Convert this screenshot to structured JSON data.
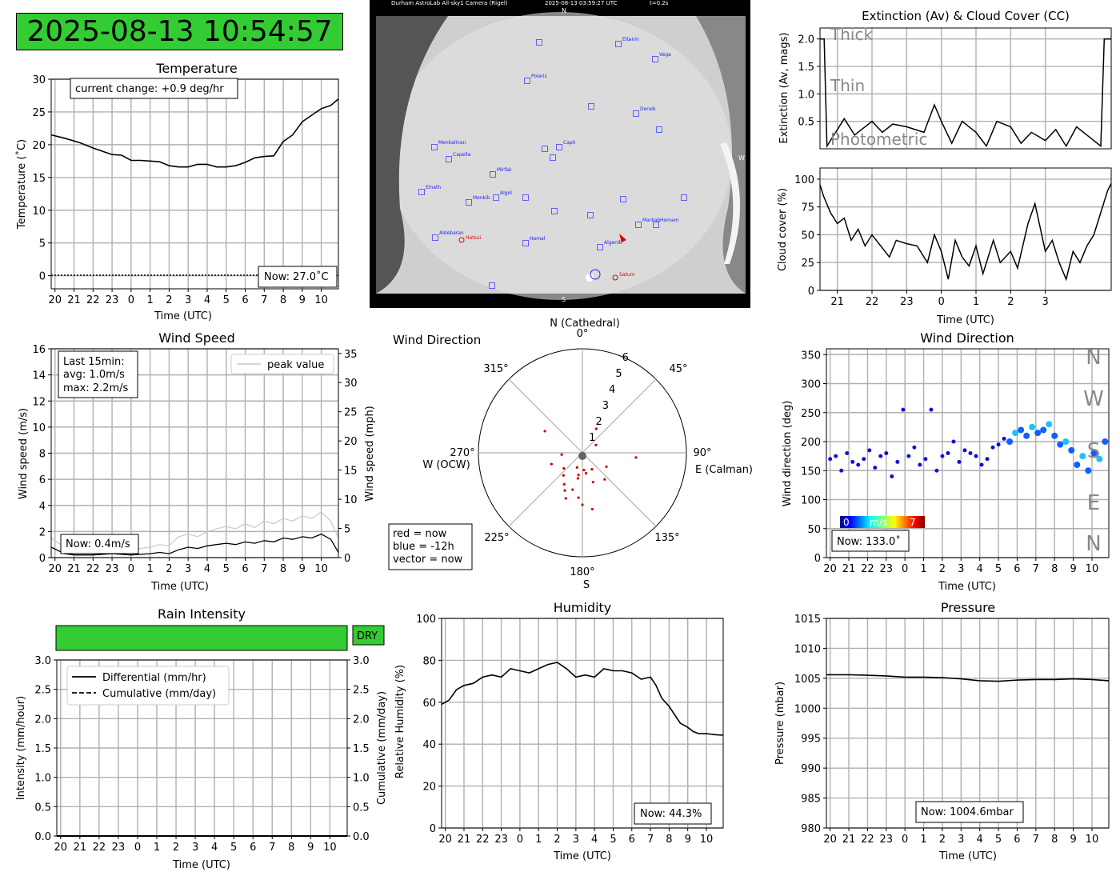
{
  "clock": "2025-08-13 10:54:57",
  "colors": {
    "green": "#33cc33",
    "grid": "#b0b0b0",
    "peak": "#c8c8c8",
    "red": "#d00000",
    "blue": "#4040ff"
  },
  "time_ticks_20_10": [
    "20",
    "21",
    "22",
    "23",
    "0",
    "1",
    "2",
    "3",
    "4",
    "5",
    "6",
    "7",
    "8",
    "9",
    "10"
  ],
  "time_ticks_21_3": [
    "21",
    "22",
    "23",
    "0",
    "1",
    "2",
    "3"
  ],
  "allsky": {
    "header": "Durham AstroLab All-sky1 Camera (Rigel)",
    "timestamp": "2025-08-13 03:59:27 UTC",
    "exposure": "t=0.2s",
    "n": "N",
    "s": "S",
    "w": "W",
    "stars": [
      "Eltanin",
      "Vega",
      "Polaris",
      "Deneb",
      "Menkalinan",
      "Capella",
      "Caph",
      "Mirfak",
      "Elnath",
      "Menkib",
      "Algol",
      "Markab",
      "Homam",
      "Aldebaran",
      "Hamal",
      "Algenib"
    ],
    "red_labels": [
      "Hatsui",
      "Saturn"
    ]
  },
  "temperature": {
    "title": "Temperature",
    "xlabel": "Time (UTC)",
    "ylabel": "Temperature (˚C)",
    "change": "current change: +0.9 deg/hr",
    "now": "Now: 27.0˚C",
    "yticks": [
      "0",
      "5",
      "10",
      "15",
      "20",
      "25",
      "30"
    ]
  },
  "extinction": {
    "title": "Extinction (Av) & Cloud Cover (CC)",
    "ylabel": "Extinction (Av, mags)",
    "yticks": [
      "0.5",
      "1.0",
      "1.5",
      "2.0"
    ],
    "labels": [
      "Thick",
      "Thin",
      "Photometric"
    ]
  },
  "cloud": {
    "ylabel": "Cloud cover (%)",
    "xlabel": "Time (UTC)",
    "yticks": [
      "0",
      "25",
      "50",
      "75",
      "100"
    ]
  },
  "wind_speed": {
    "title": "Wind Speed",
    "xlabel": "Time (UTC)",
    "ylabel": "Wind speed (m/s)",
    "ylabel2": "Wind speed (mph)",
    "stats": [
      "Last 15min:",
      "avg: 1.0m/s",
      "max: 2.2m/s"
    ],
    "legend": "peak value",
    "now": "Now: 0.4m/s",
    "yticks": [
      "0",
      "2",
      "4",
      "6",
      "8",
      "10",
      "12",
      "14",
      "16"
    ],
    "yticks2": [
      "0",
      "5",
      "10",
      "15",
      "20",
      "25",
      "30",
      "35"
    ]
  },
  "wind_polar": {
    "title": "Wind Direction",
    "labels": [
      "N (Cathedral)",
      "0°",
      "45°",
      "90°",
      "E (Calman)",
      "135°",
      "180°",
      "S",
      "225°",
      "270°",
      "W (OCW)",
      "315°"
    ],
    "rticks": [
      "1",
      "2",
      "3",
      "4",
      "5",
      "6"
    ],
    "legend": [
      "red = now",
      "blue = -12h",
      "vector = now"
    ]
  },
  "wind_dir": {
    "title": "Wind Direction",
    "xlabel": "Time (UTC)",
    "ylabel": "Wind direction (deg)",
    "yticks": [
      "0",
      "50",
      "100",
      "150",
      "200",
      "250",
      "300",
      "350"
    ],
    "compass": [
      "N",
      "W",
      "S",
      "E",
      "N"
    ],
    "cbar_min": "0",
    "cbar_unit": "m/s",
    "cbar_max": "7",
    "now": "Now: 133.0˚"
  },
  "rain": {
    "title": "Rain Intensity",
    "status": "DRY",
    "xlabel": "Time (UTC)",
    "ylabel": "Intensity (mm/hour)",
    "ylabel2": "Cumulative (mm/day)",
    "legend": [
      "Differential (mm/hr)",
      "Cumulative (mm/day)"
    ],
    "yticks": [
      "0.0",
      "0.5",
      "1.0",
      "1.5",
      "2.0",
      "2.5",
      "3.0"
    ]
  },
  "humidity": {
    "title": "Humidity",
    "xlabel": "Time (UTC)",
    "ylabel": "Relative Humidity (%)",
    "now": "Now: 44.3%",
    "yticks": [
      "0",
      "20",
      "40",
      "60",
      "80",
      "100"
    ]
  },
  "pressure": {
    "title": "Pressure",
    "xlabel": "Time (UTC)",
    "ylabel": "Pressure (mbar)",
    "now": "Now: 1004.6mbar",
    "yticks": [
      "980",
      "985",
      "990",
      "995",
      "1000",
      "1005",
      "1010",
      "1015"
    ]
  },
  "chart_data": [
    {
      "type": "line",
      "title": "Temperature",
      "xlabel": "Time (UTC)",
      "ylabel": "Temperature (˚C)",
      "ylim": [
        -2,
        30
      ],
      "xlim": [
        19.8,
        34.9
      ],
      "x": [
        19.8,
        20.5,
        21.3,
        22,
        22.5,
        23,
        23.5,
        24,
        24.5,
        25,
        25.5,
        26,
        26.5,
        27,
        27.5,
        28,
        28.5,
        29,
        29.5,
        30,
        30.5,
        31,
        31.5,
        32,
        32.5,
        33,
        33.5,
        34,
        34.5,
        34.9
      ],
      "values": [
        21.5,
        21,
        20.3,
        19.5,
        19,
        18.5,
        18.4,
        17.6,
        17.6,
        17.5,
        17.4,
        16.8,
        16.6,
        16.6,
        17,
        17,
        16.6,
        16.6,
        16.8,
        17.3,
        18,
        18.2,
        18.3,
        20.5,
        21.5,
        23.5,
        24.5,
        25.5,
        26,
        27
      ]
    },
    {
      "type": "line",
      "title": "Extinction (Av) & Cloud Cover (CC)",
      "ylabel": "Extinction (Av, mags)",
      "ylim": [
        0,
        2.2
      ],
      "xlim": [
        20.5,
        28.9
      ],
      "x": [
        20.5,
        20.62,
        20.7,
        21,
        21.2,
        21.5,
        22,
        22.3,
        22.6,
        23,
        23.5,
        23.8,
        24,
        24.3,
        24.6,
        25,
        25.3,
        25.6,
        26,
        26.3,
        26.6,
        27,
        27.3,
        27.6,
        27.9,
        28.3,
        28.6,
        28.7,
        28.9
      ],
      "values": [
        2.0,
        2.0,
        0.05,
        0.35,
        0.55,
        0.25,
        0.5,
        0.3,
        0.45,
        0.4,
        0.3,
        0.8,
        0.5,
        0.1,
        0.5,
        0.3,
        0.05,
        0.5,
        0.4,
        0.1,
        0.3,
        0.15,
        0.35,
        0.05,
        0.4,
        0.2,
        0.05,
        2.0,
        2.0
      ]
    },
    {
      "type": "line",
      "ylabel": "Cloud cover (%)",
      "xlabel": "Time (UTC)",
      "ylim": [
        0,
        110
      ],
      "xlim": [
        20.5,
        28.9
      ],
      "x": [
        20.5,
        20.6,
        20.8,
        21,
        21.2,
        21.4,
        21.6,
        21.8,
        22,
        22.3,
        22.5,
        22.7,
        23,
        23.3,
        23.6,
        23.8,
        24,
        24.2,
        24.4,
        24.6,
        24.8,
        25,
        25.2,
        25.5,
        25.7,
        26,
        26.2,
        26.5,
        26.7,
        27,
        27.2,
        27.4,
        27.6,
        27.8,
        28,
        28.2,
        28.4,
        28.6,
        28.8,
        28.9
      ],
      "values": [
        95,
        85,
        70,
        60,
        65,
        45,
        55,
        40,
        50,
        38,
        30,
        45,
        42,
        40,
        25,
        50,
        35,
        10,
        45,
        30,
        22,
        40,
        15,
        45,
        25,
        35,
        20,
        60,
        78,
        35,
        45,
        25,
        10,
        35,
        25,
        40,
        50,
        70,
        90,
        96
      ]
    },
    {
      "type": "line",
      "title": "Wind Speed",
      "xlabel": "Time (UTC)",
      "ylabel": "Wind speed (m/s)",
      "ylim": [
        0,
        16
      ],
      "xlim": [
        19.8,
        34.9
      ],
      "x": [
        19.8,
        20.5,
        21,
        22,
        23,
        24,
        25,
        25.5,
        26,
        26.5,
        27,
        27.5,
        28,
        28.5,
        29,
        29.5,
        30,
        30.5,
        31,
        31.5,
        32,
        32.5,
        33,
        33.5,
        34,
        34.5,
        34.9
      ],
      "values": [
        0.8,
        0.3,
        0.2,
        0.2,
        0.3,
        0.2,
        0.3,
        0.4,
        0.3,
        0.6,
        0.8,
        0.7,
        0.9,
        1.0,
        1.1,
        1.0,
        1.2,
        1.1,
        1.3,
        1.2,
        1.5,
        1.4,
        1.6,
        1.5,
        1.8,
        1.4,
        0.4
      ],
      "series": [
        {
          "name": "peak value",
          "values": [
            1.5,
            0.8,
            0.6,
            0.6,
            0.8,
            0.6,
            0.8,
            1.0,
            0.9,
            1.6,
            1.8,
            1.6,
            2.0,
            2.2,
            2.4,
            2.2,
            2.6,
            2.3,
            2.8,
            2.6,
            3.0,
            2.8,
            3.2,
            3.0,
            3.5,
            2.8,
            1.5
          ]
        }
      ]
    },
    {
      "type": "scatter",
      "title": "Wind Direction",
      "polar": true,
      "rlim": [
        0,
        6
      ],
      "points": [
        [
          170,
          1.2
        ],
        [
          190,
          1.5
        ],
        [
          200,
          0.9
        ],
        [
          160,
          1.8
        ],
        [
          210,
          2.1
        ],
        [
          185,
          2.6
        ],
        [
          175,
          1.0
        ],
        [
          230,
          1.4
        ],
        [
          150,
          1.1
        ],
        [
          195,
          2.2
        ],
        [
          120,
          1.6
        ],
        [
          250,
          1.9
        ],
        [
          220,
          1.7
        ],
        [
          200,
          2.8
        ],
        [
          180,
          3.0
        ],
        [
          95,
          3.1
        ],
        [
          265,
          1.2
        ],
        [
          140,
          2.0
        ],
        [
          205,
          2.4
        ],
        [
          190,
          1.3
        ],
        [
          300,
          2.5
        ],
        [
          30,
          1.6
        ],
        [
          60,
          0.9
        ],
        [
          170,
          3.3
        ]
      ]
    },
    {
      "type": "scatter",
      "title": "Wind Direction",
      "xlabel": "Time (UTC)",
      "ylabel": "Wind direction (deg)",
      "ylim": [
        0,
        360
      ],
      "xlim": [
        19.8,
        34.9
      ],
      "x": [
        20,
        20.3,
        20.6,
        20.9,
        21.2,
        21.5,
        21.8,
        22.1,
        22.4,
        22.7,
        23,
        23.3,
        23.6,
        23.9,
        24.2,
        24.5,
        24.8,
        25.1,
        25.4,
        25.7,
        26,
        26.3,
        26.6,
        26.9,
        27.2,
        27.5,
        27.8,
        28.1,
        28.4,
        28.7,
        29,
        29.3,
        29.6,
        29.9,
        30.2,
        30.5,
        30.8,
        31.1,
        31.4,
        31.7,
        32,
        32.3,
        32.6,
        32.9,
        33.2,
        33.5,
        33.8,
        34.1,
        34.4,
        34.7
      ],
      "values": [
        170,
        175,
        150,
        180,
        165,
        160,
        170,
        185,
        155,
        175,
        180,
        140,
        165,
        255,
        175,
        190,
        160,
        170,
        255,
        150,
        175,
        180,
        200,
        165,
        185,
        180,
        175,
        160,
        170,
        190,
        195,
        205,
        200,
        215,
        220,
        210,
        225,
        215,
        220,
        230,
        210,
        195,
        200,
        185,
        160,
        175,
        150,
        180,
        170,
        200
      ]
    },
    {
      "type": "line",
      "title": "Rain Intensity",
      "xlabel": "Time (UTC)",
      "ylabel": "Intensity (mm/hour)",
      "ylim": [
        0,
        3
      ],
      "xlim": [
        19.8,
        34.9
      ],
      "x": [
        19.8,
        34.9
      ],
      "series": [
        {
          "name": "Differential (mm/hr)",
          "values": [
            0,
            0
          ]
        },
        {
          "name": "Cumulative (mm/day)",
          "values": [
            0,
            0
          ]
        }
      ]
    },
    {
      "type": "line",
      "title": "Humidity",
      "xlabel": "Time (UTC)",
      "ylabel": "Relative Humidity (%)",
      "ylim": [
        0,
        100
      ],
      "xlim": [
        19.8,
        34.9
      ],
      "x": [
        19.8,
        20.2,
        20.6,
        21,
        21.5,
        22,
        22.5,
        23,
        23.5,
        24,
        24.5,
        25,
        25.5,
        26,
        26.5,
        27,
        27.5,
        28,
        28.5,
        29,
        29.5,
        30,
        30.5,
        31,
        31.3,
        31.6,
        32,
        32.3,
        32.6,
        33,
        33.3,
        33.6,
        34,
        34.5,
        34.9
      ],
      "values": [
        59,
        61,
        66,
        68,
        69,
        72,
        73,
        72,
        76,
        75,
        74,
        76,
        78,
        79,
        76,
        72,
        73,
        72,
        76,
        75,
        75,
        74,
        71,
        72,
        68,
        62,
        58,
        54,
        50,
        48,
        46,
        45,
        45,
        44.5,
        44.3
      ]
    },
    {
      "type": "line",
      "title": "Pressure",
      "xlabel": "Time (UTC)",
      "ylabel": "Pressure (mbar)",
      "ylim": [
        980,
        1015
      ],
      "xlim": [
        19.8,
        34.9
      ],
      "x": [
        19.8,
        21,
        22,
        23,
        24,
        25,
        26,
        27,
        28,
        29,
        30,
        31,
        32,
        33,
        34,
        34.9
      ],
      "values": [
        1005.6,
        1005.6,
        1005.5,
        1005.4,
        1005.2,
        1005.2,
        1005.1,
        1004.9,
        1004.6,
        1004.5,
        1004.7,
        1004.8,
        1004.8,
        1004.9,
        1004.8,
        1004.6
      ]
    }
  ]
}
